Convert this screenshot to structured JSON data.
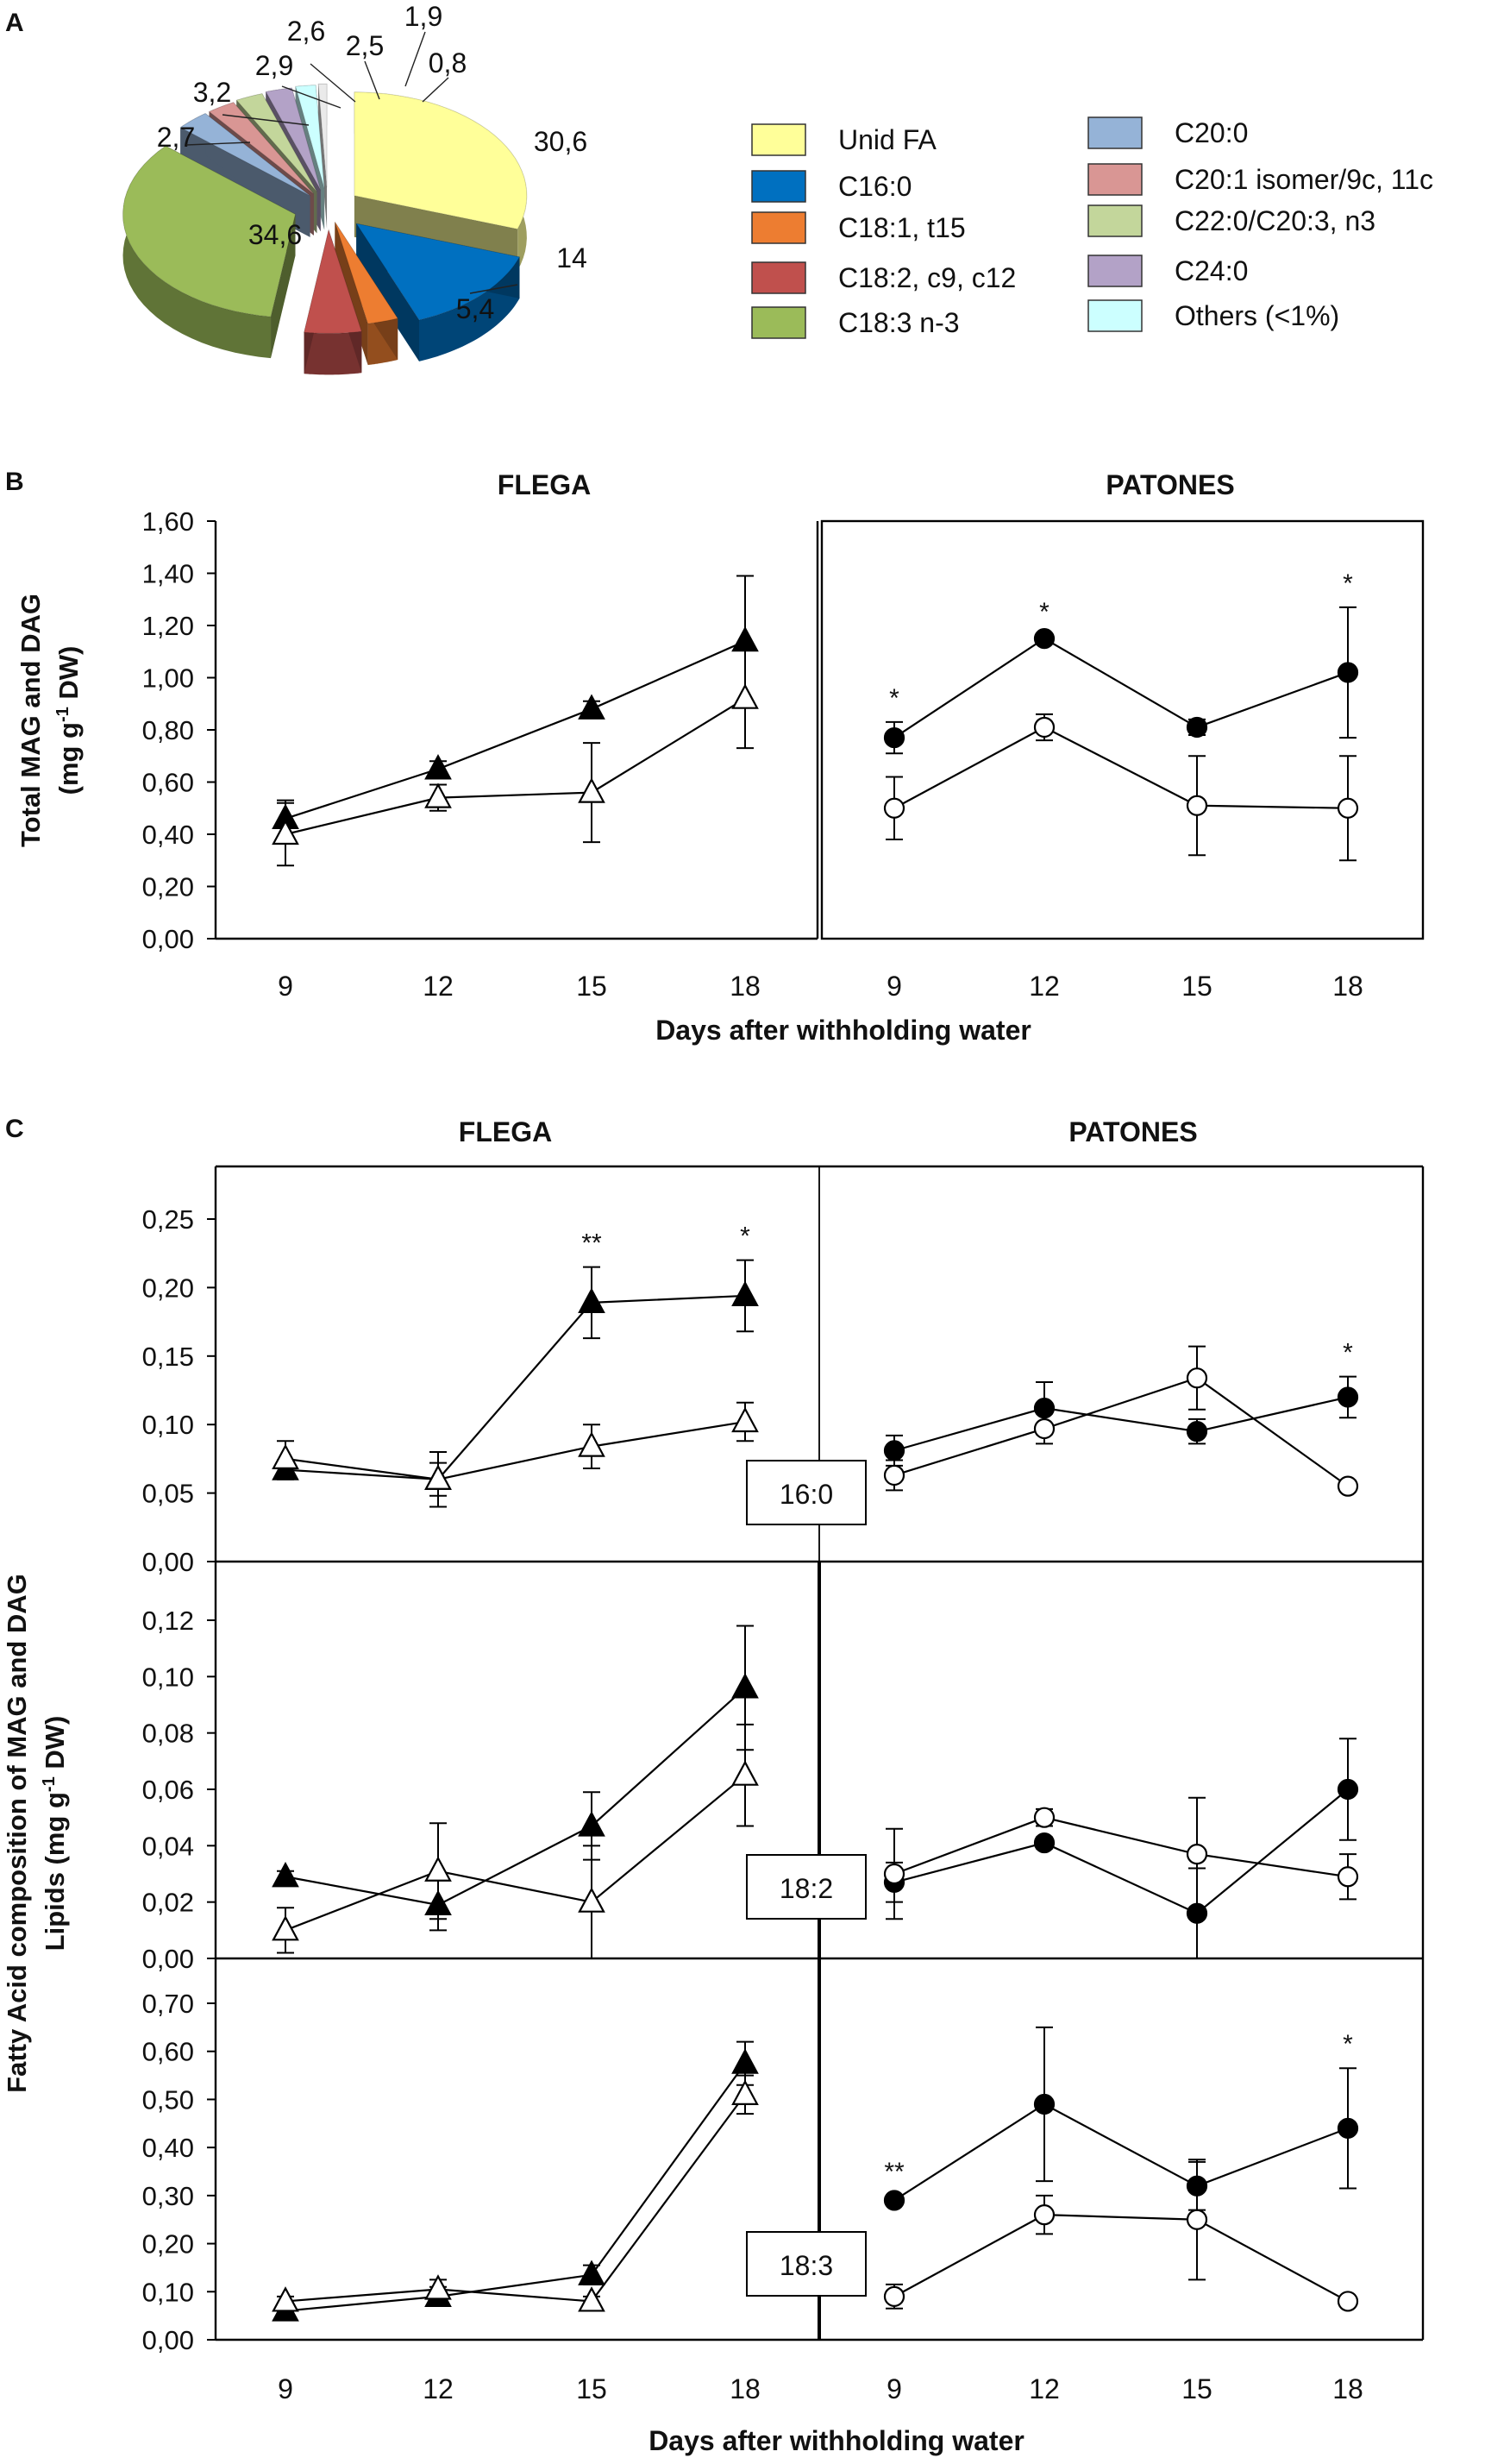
{
  "chart_data": [
    {
      "panel_label": "A",
      "type": "pie",
      "slices": [
        {
          "label": "Unid FA",
          "value": 30.6,
          "value_label": "30,6",
          "color": "#FFFF99"
        },
        {
          "label": "C16:0",
          "value": 14,
          "value_label": "14",
          "color": "#0070C0"
        },
        {
          "label": "C18:1, t15",
          "value": 2.9,
          "value_label": "2,9",
          "color": "#ED7D31"
        },
        {
          "label": "C18:2, c9, c12",
          "value": 5.4,
          "value_label": "5,4",
          "color": "#C0504D"
        },
        {
          "label": "C18:3 n-3",
          "value": 34.6,
          "value_label": "34,6",
          "color": "#9BBB59"
        },
        {
          "label": "C20:0",
          "value": 3.2,
          "value_label": "3,2",
          "color": "#95B3D7"
        },
        {
          "label": "C20:1 isomer/9c, 11c",
          "value": 2.7,
          "value_label": "2,7",
          "color": "#D99694"
        },
        {
          "label": "C22:0/C20:3, n3",
          "value": 2.6,
          "value_label": "2,6",
          "color": "#C3D69B"
        },
        {
          "label": "C24:0",
          "value": 2.5,
          "value_label": "2,5",
          "color": "#B3A2C7"
        },
        {
          "label": "Others (<1%)",
          "value": 1.9,
          "value_label": "1,9",
          "color": "#CCFFFF"
        },
        {
          "label": "",
          "value": 0.8,
          "value_label": "0,8",
          "color": "#EAEAEA"
        }
      ],
      "legend_col1": [
        "Unid FA",
        "C16:0",
        "C18:1, t15",
        "C18:2, c9, c12",
        "C18:3 n-3"
      ],
      "legend_col2": [
        "C20:0",
        "C20:1 isomer/9c, 11c",
        "C22:0/C20:3, n3",
        "C24:0",
        "Others (<1%)"
      ]
    },
    {
      "panel_label": "B",
      "type": "line",
      "ylabel": "Total MAG and DAG",
      "ylabel_line2": "(mg g",
      "ylabel_sup": "-1",
      "ylabel_end": " DW)",
      "xlabel": "Days after withholding water",
      "ylim": [
        0,
        1.6
      ],
      "yticks": [
        "0,00",
        "0,20",
        "0,40",
        "0,60",
        "0,80",
        "1,00",
        "1,20",
        "1,40",
        "1,60"
      ],
      "x": [
        9,
        12,
        15,
        18
      ],
      "groups": [
        {
          "title": "FLEGA",
          "series": [
            {
              "name": "FLEGA filled triangle",
              "marker": "triangle",
              "filled": true,
              "values": [
                0.46,
                0.65,
                0.88,
                1.14
              ],
              "errors": [
                0.07,
                0.03,
                0.03,
                0.25
              ]
            },
            {
              "name": "FLEGA open triangle",
              "marker": "triangle",
              "filled": false,
              "values": [
                0.4,
                0.54,
                0.56,
                0.92
              ],
              "errors": [
                0.12,
                0.05,
                0.19,
                0.19
              ]
            }
          ],
          "annotations": [
            "",
            "",
            "",
            ""
          ]
        },
        {
          "title": "PATONES",
          "series": [
            {
              "name": "PATONES filled circle",
              "marker": "circle",
              "filled": true,
              "values": [
                0.77,
                1.15,
                0.81,
                1.02
              ],
              "errors": [
                0.06,
                0.01,
                0.03,
                0.25
              ]
            },
            {
              "name": "PATONES open circle",
              "marker": "circle",
              "filled": false,
              "values": [
                0.5,
                0.81,
                0.51,
                0.5
              ],
              "errors": [
                0.12,
                0.05,
                0.19,
                0.2
              ]
            }
          ],
          "annotations": [
            "*",
            "*",
            "",
            "*"
          ]
        }
      ]
    },
    {
      "panel_label": "C",
      "type": "line",
      "ylabel": "Fatty Acid composition of MAG and DAG",
      "ylabel_line2": "Lipids (mg g",
      "ylabel_sup": "-1",
      "ylabel_end": " DW)",
      "xlabel": "Days after withholding water",
      "x": [
        9,
        12,
        15,
        18
      ],
      "group_titles": [
        "FLEGA",
        "PATONES"
      ],
      "subpanels": [
        {
          "label": "16:0",
          "ylim": [
            0,
            0.25
          ],
          "yticks": [
            "0,00",
            "0,05",
            "0,10",
            "0,15",
            "0,20",
            "0,25"
          ],
          "groups": [
            {
              "series": [
                {
                  "marker": "triangle",
                  "filled": true,
                  "values": [
                    0.067,
                    0.06,
                    0.189,
                    0.194
                  ],
                  "errors": [
                    0.007,
                    0.012,
                    0.026,
                    0.026
                  ]
                },
                {
                  "marker": "triangle",
                  "filled": false,
                  "values": [
                    0.075,
                    0.06,
                    0.084,
                    0.102
                  ],
                  "errors": [
                    0.013,
                    0.02,
                    0.016,
                    0.014
                  ]
                }
              ],
              "annotations": [
                "",
                "",
                "**",
                "*"
              ]
            },
            {
              "series": [
                {
                  "marker": "circle",
                  "filled": true,
                  "values": [
                    0.081,
                    0.112,
                    0.095,
                    0.12
                  ],
                  "errors": [
                    0.011,
                    0.019,
                    0.009,
                    0.015
                  ]
                },
                {
                  "marker": "circle",
                  "filled": false,
                  "values": [
                    0.063,
                    0.097,
                    0.134,
                    0.055
                  ],
                  "errors": [
                    0.011,
                    0.011,
                    0.023,
                    0.004
                  ]
                }
              ],
              "annotations": [
                "",
                "",
                "",
                "*"
              ]
            }
          ]
        },
        {
          "label": "18:2",
          "ylim": [
            0,
            0.12
          ],
          "yticks": [
            "0,00",
            "0,02",
            "0,04",
            "0,06",
            "0,08",
            "0,10",
            "0,12"
          ],
          "groups": [
            {
              "series": [
                {
                  "marker": "triangle",
                  "filled": true,
                  "values": [
                    0.029,
                    0.019,
                    0.047,
                    0.096
                  ],
                  "errors": [
                    0.002,
                    0.009,
                    0.012,
                    0.022
                  ]
                },
                {
                  "marker": "triangle",
                  "filled": false,
                  "values": [
                    0.01,
                    0.031,
                    0.02,
                    0.065
                  ],
                  "errors": [
                    0.008,
                    0.017,
                    0.02,
                    0.018
                  ]
                }
              ],
              "annotations": [
                "",
                "",
                "",
                ""
              ]
            },
            {
              "series": [
                {
                  "marker": "circle",
                  "filled": true,
                  "values": [
                    0.027,
                    0.041,
                    0.016,
                    0.06
                  ],
                  "errors": [
                    0.007,
                    0.002,
                    0.016,
                    0.018
                  ]
                },
                {
                  "marker": "circle",
                  "filled": false,
                  "values": [
                    0.03,
                    0.05,
                    0.037,
                    0.029
                  ],
                  "errors": [
                    0.016,
                    0.003,
                    0.02,
                    0.008
                  ]
                }
              ],
              "annotations": [
                "",
                "",
                "",
                ""
              ]
            }
          ]
        },
        {
          "label": "18:3",
          "ylim": [
            0,
            0.7
          ],
          "yticks": [
            "0,00",
            "0,10",
            "0,20",
            "0,30",
            "0,40",
            "0,50",
            "0,60",
            "0,70"
          ],
          "groups": [
            {
              "series": [
                {
                  "marker": "triangle",
                  "filled": true,
                  "values": [
                    0.06,
                    0.09,
                    0.135,
                    0.575
                  ],
                  "errors": [
                    0.01,
                    0.02,
                    0.02,
                    0.045
                  ]
                },
                {
                  "marker": "triangle",
                  "filled": false,
                  "values": [
                    0.08,
                    0.105,
                    0.08,
                    0.51
                  ],
                  "errors": [
                    0.01,
                    0.02,
                    0.01,
                    0.04
                  ]
                }
              ],
              "annotations": [
                "",
                "",
                "",
                ""
              ]
            },
            {
              "series": [
                {
                  "marker": "circle",
                  "filled": true,
                  "values": [
                    0.29,
                    0.49,
                    0.32,
                    0.44
                  ],
                  "errors": [
                    0.01,
                    0.16,
                    0.05,
                    0.125
                  ]
                },
                {
                  "marker": "circle",
                  "filled": false,
                  "values": [
                    0.09,
                    0.26,
                    0.25,
                    0.08
                  ],
                  "errors": [
                    0.025,
                    0.04,
                    0.125,
                    0.01
                  ]
                }
              ],
              "annotations": [
                "**",
                "",
                "",
                "*"
              ]
            }
          ]
        }
      ]
    }
  ]
}
